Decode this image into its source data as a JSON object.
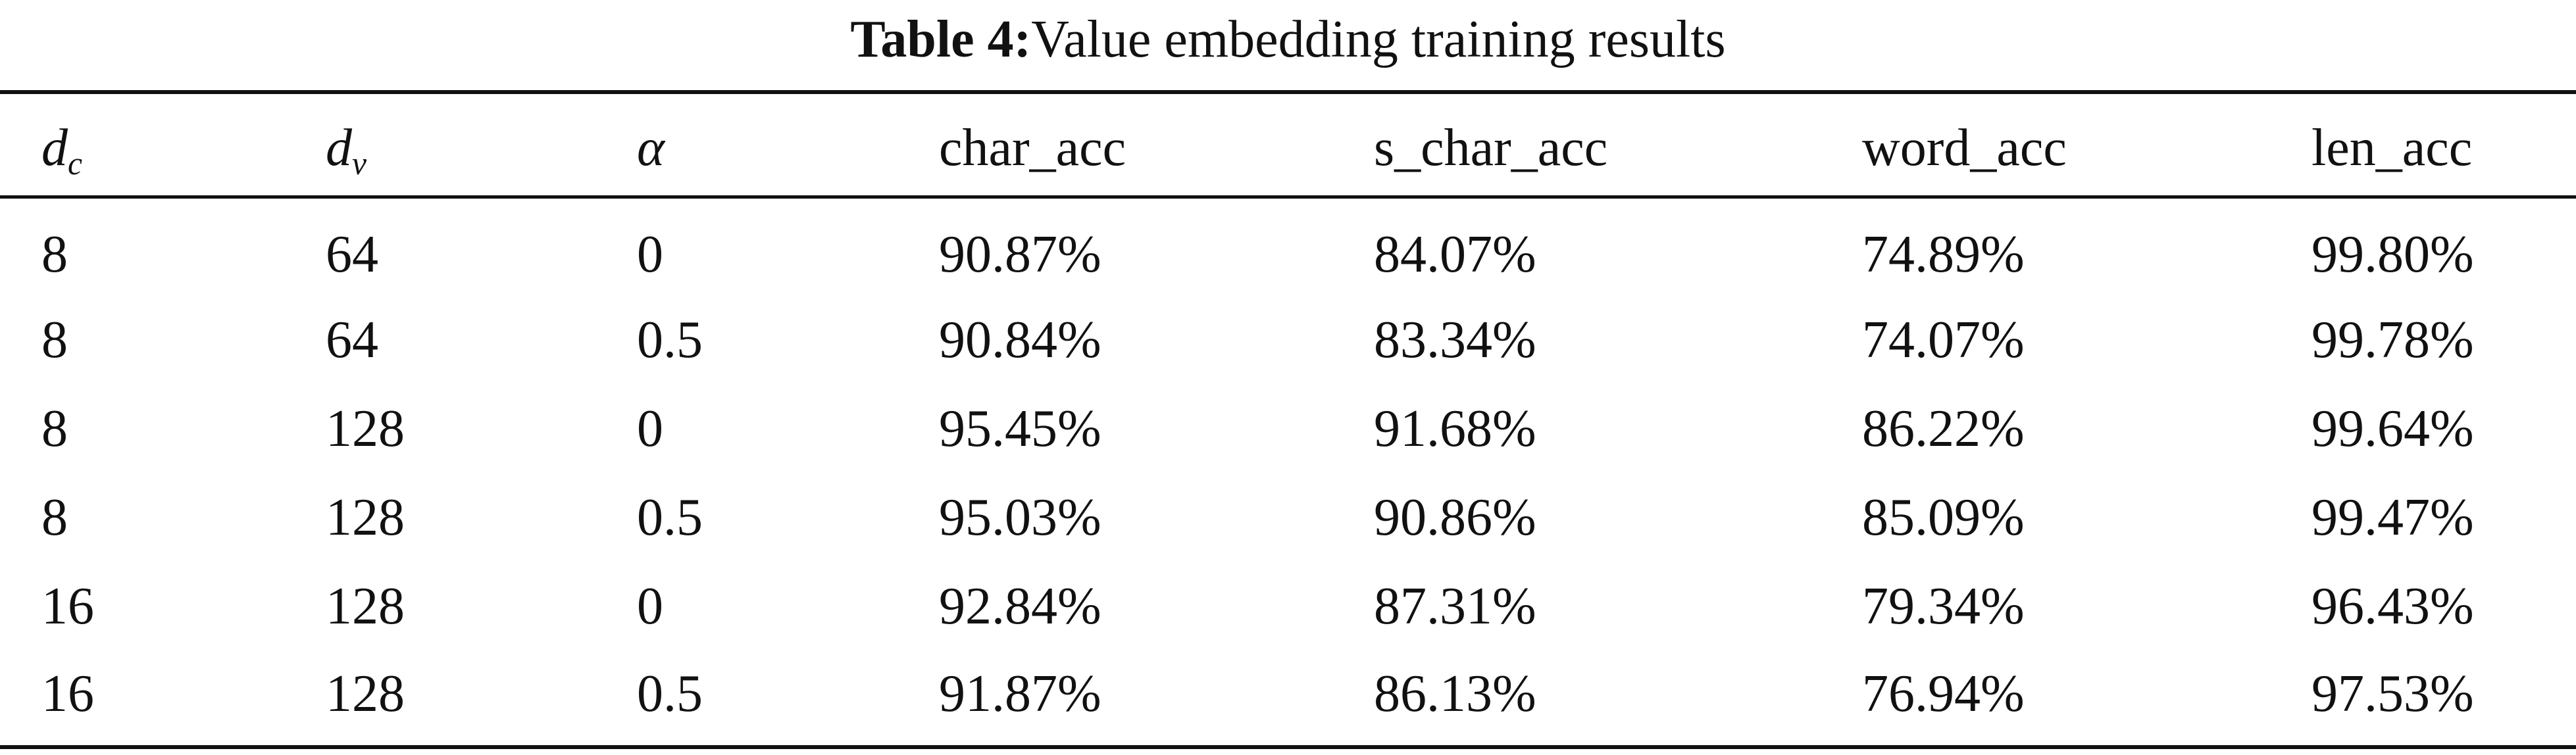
{
  "caption": {
    "label": "Table 4:",
    "text": "Value embedding training results"
  },
  "table": {
    "headers": [
      {
        "base": "d",
        "sub": "c"
      },
      {
        "base": "d",
        "sub": "v"
      },
      {
        "base": "α",
        "sub": ""
      },
      {
        "base": "char_acc",
        "sub": ""
      },
      {
        "base": "s_char_acc",
        "sub": ""
      },
      {
        "base": "word_acc",
        "sub": ""
      },
      {
        "base": "len_acc",
        "sub": ""
      }
    ],
    "rows": [
      [
        "8",
        "64",
        "0",
        "90.87%",
        "84.07%",
        "74.89%",
        "99.80%"
      ],
      [
        "8",
        "64",
        "0.5",
        "90.84%",
        "83.34%",
        "74.07%",
        "99.78%"
      ],
      [
        "8",
        "128",
        "0",
        "95.45%",
        "91.68%",
        "86.22%",
        "99.64%"
      ],
      [
        "8",
        "128",
        "0.5",
        "95.03%",
        "90.86%",
        "85.09%",
        "99.47%"
      ],
      [
        "16",
        "128",
        "0",
        "92.84%",
        "87.31%",
        "79.34%",
        "96.43%"
      ],
      [
        "16",
        "128",
        "0.5",
        "91.87%",
        "86.13%",
        "76.94%",
        "97.53%"
      ]
    ]
  }
}
